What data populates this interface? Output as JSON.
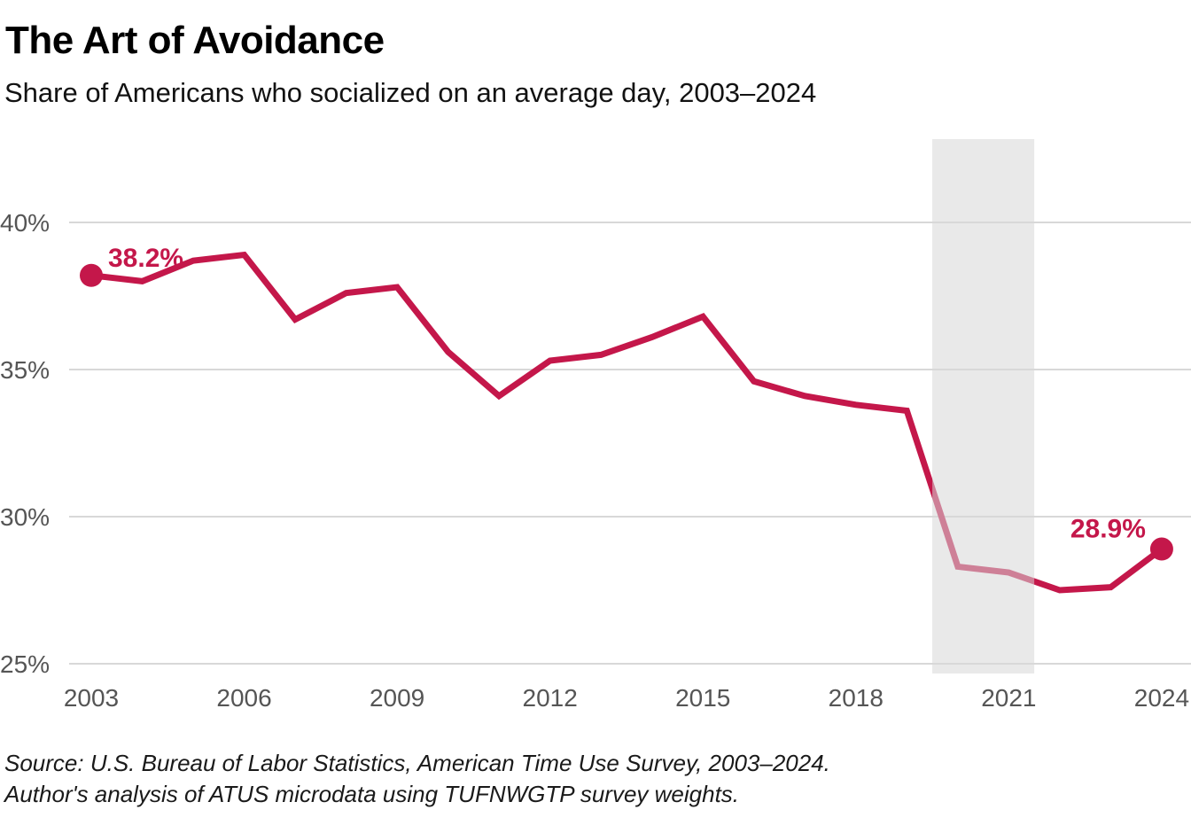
{
  "header": {
    "title": "The Art of Avoidance",
    "subtitle": "Share of Americans who socialized on an average day, 2003–2024"
  },
  "chart_data": {
    "type": "line",
    "title": "The Art of Avoidance",
    "subtitle": "Share of Americans who socialized on an average day, 2003–2024",
    "x": [
      2003,
      2004,
      2005,
      2006,
      2007,
      2008,
      2009,
      2010,
      2011,
      2012,
      2013,
      2014,
      2015,
      2016,
      2017,
      2018,
      2019,
      2020,
      2021,
      2022,
      2023,
      2024
    ],
    "values": [
      38.2,
      38.0,
      38.7,
      38.9,
      36.7,
      37.6,
      37.8,
      35.6,
      34.1,
      35.3,
      35.5,
      36.1,
      36.8,
      34.6,
      34.1,
      33.8,
      33.6,
      28.3,
      28.1,
      27.5,
      27.6,
      28.9
    ],
    "start_point_label": "38.2%",
    "end_point_label": "28.9%",
    "xlabel": "",
    "ylabel": "",
    "xticks": [
      2003,
      2006,
      2009,
      2012,
      2015,
      2018,
      2021,
      2024
    ],
    "xtick_labels": [
      "2003",
      "2006",
      "2009",
      "2012",
      "2015",
      "2018",
      "2021",
      "2024"
    ],
    "yticks": [
      40,
      35,
      30,
      25
    ],
    "ytick_labels": [
      "40%",
      "35%",
      "30%",
      "25%"
    ],
    "ylim": [
      25,
      42.8
    ],
    "xlim": [
      2003,
      2024
    ],
    "grid": "horizontal",
    "legend": "none",
    "highlight_band": {
      "x_start": 2019.5,
      "x_end": 2021.5,
      "fill": "#d7d7d7",
      "opacity": 0.55
    },
    "line_color": "#c4174a",
    "axis_label_color": "#555555",
    "gridline_color": "#cccccc"
  },
  "footer": {
    "source_line1": "Source: U.S. Bureau of Labor Statistics, American Time Use Survey, 2003–2024.",
    "source_line2": "Author's analysis of ATUS microdata using TUFNWGTP survey weights."
  }
}
